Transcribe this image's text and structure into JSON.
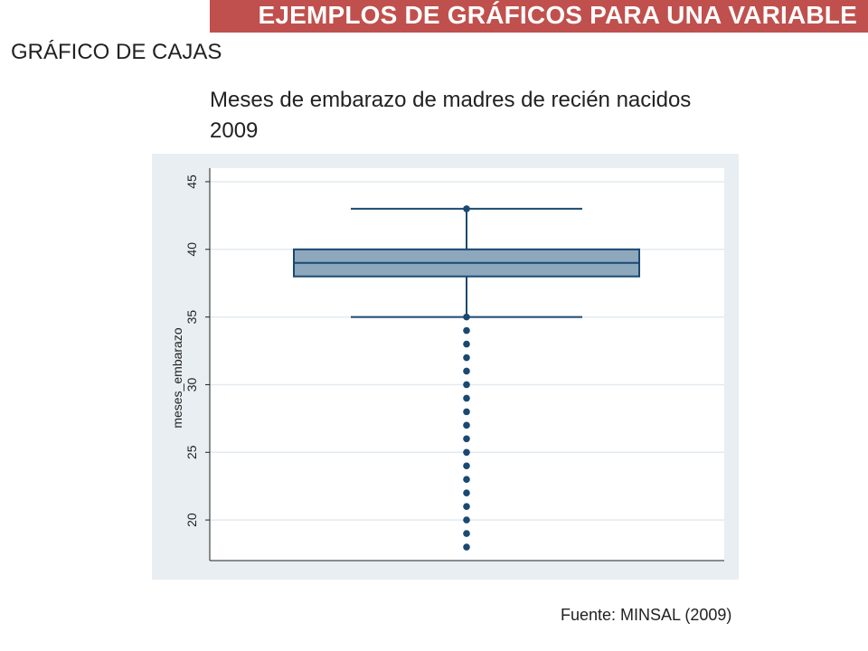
{
  "header": {
    "banner": "EJEMPLOS DE GRÁFICOS PARA UNA VARIABLE",
    "section_title": "GRÁFICO DE CAJAS"
  },
  "colors": {
    "banner_bg": "#c0504d",
    "plot_region_bg": "#e8eef2",
    "plot_bg": "#ffffff",
    "box_fill": "#8da7bc",
    "box_stroke": "#1a4971",
    "grid": "#e3eaef"
  },
  "footer": {
    "source": "Fuente: MINSAL (2009)"
  },
  "chart_data": {
    "type": "box",
    "title": "Meses de embarazo de madres de recién nacidos 2009",
    "ylabel": "meses_embarazo",
    "xlabel": "",
    "ylim": [
      17,
      46
    ],
    "yticks": [
      20,
      25,
      30,
      35,
      40,
      45
    ],
    "grid": true,
    "box": {
      "lower_whisker": 35,
      "q1": 38,
      "median": 39,
      "q3": 40,
      "upper_whisker": 43
    },
    "outliers": [
      18,
      19,
      20,
      21,
      22,
      23,
      24,
      25,
      26,
      27,
      28,
      29,
      30,
      31,
      32,
      33,
      34,
      35,
      43
    ]
  }
}
